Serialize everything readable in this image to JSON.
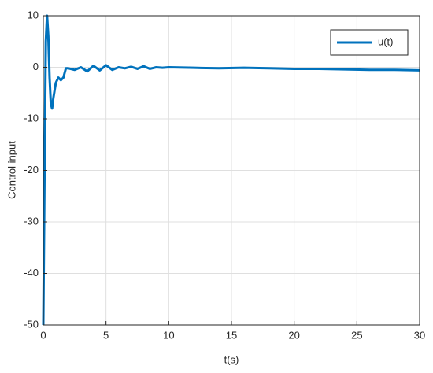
{
  "chart_data": {
    "type": "line",
    "xlabel": "t(s)",
    "ylabel": "Control input",
    "x": [
      0,
      0.1,
      0.2,
      0.3,
      0.4,
      0.5,
      0.6,
      0.7,
      0.8,
      1.0,
      1.2,
      1.4,
      1.6,
      1.8,
      2.0,
      2.5,
      3.0,
      3.5,
      4.0,
      4.5,
      5.0,
      5.5,
      6,
      6.5,
      7,
      7.5,
      8,
      8.5,
      9,
      9.5,
      10,
      12,
      14,
      16,
      18,
      20,
      22,
      24,
      26,
      28,
      30
    ],
    "series": [
      {
        "name": "u(t)",
        "color": "#0072bd",
        "values": [
          -50,
          -20,
          5,
          10,
          6,
          -2,
          -7,
          -8,
          -6,
          -3,
          -2,
          -2.5,
          -2,
          -0.2,
          -0.2,
          -0.5,
          0,
          -0.8,
          0.3,
          -0.6,
          0.4,
          -0.5,
          0,
          -0.2,
          0.1,
          -0.3,
          0.2,
          -0.3,
          0,
          -0.1,
          0,
          -0.1,
          -0.2,
          -0.1,
          -0.2,
          -0.3,
          -0.3,
          -0.4,
          -0.5,
          -0.5,
          -0.6
        ]
      }
    ],
    "xlim": [
      0,
      30
    ],
    "xticks": [
      0,
      5,
      10,
      15,
      20,
      25,
      30
    ],
    "ylim": [
      -50,
      10
    ],
    "yticks": [
      -50,
      -40,
      -30,
      -20,
      -10,
      0,
      10
    ],
    "grid": true,
    "legend": "northeast"
  }
}
